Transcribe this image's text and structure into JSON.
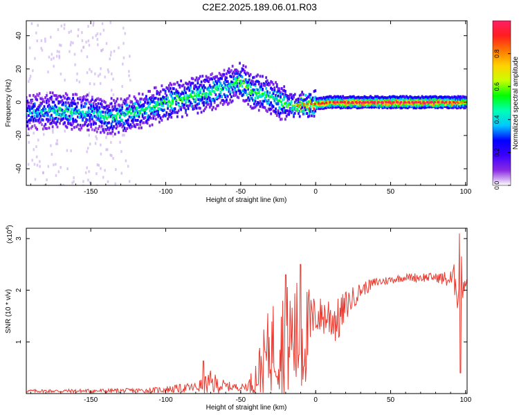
{
  "figure": {
    "title": "C2E2.2025.189.06.01.R03"
  },
  "chart_data": [
    {
      "type": "heatmap",
      "title": "C2E2.2025.189.06.01.R03",
      "xlabel": "Height of straight line (km)",
      "ylabel": "Frequency (Hz)",
      "xlim": [
        -193,
        101
      ],
      "ylim": [
        -50,
        49
      ],
      "xticks": [
        -150,
        -100,
        -50,
        0,
        50,
        100
      ],
      "yticks": [
        -40,
        -20,
        0,
        20,
        40
      ],
      "colorbar": {
        "label": "Normalized spectral amplitude",
        "range": [
          0,
          1
        ],
        "ticks": [
          0.0,
          0.2,
          0.4,
          0.6,
          0.8
        ],
        "colormap": [
          "#ffffff",
          "#8a2be2",
          "#3c00ff",
          "#0000ff",
          "#00c8ff",
          "#00ffb4",
          "#00ff00",
          "#c8ff00",
          "#ffd200",
          "#ff7800",
          "#ff1e1e",
          "#ff1e64"
        ]
      },
      "frequency_ridge": {
        "x": [
          -193,
          -180,
          -170,
          -160,
          -150,
          -140,
          -130,
          -120,
          -110,
          -100,
          -90,
          -80,
          -70,
          -60,
          -55,
          -50,
          -47,
          -45,
          -40,
          -35,
          -30,
          -25,
          -20,
          -15,
          -10,
          -5,
          0,
          10,
          20,
          40,
          60,
          80,
          90,
          100
        ],
        "frequency": [
          -7,
          -5,
          -5,
          -6,
          -6,
          -9,
          -8,
          -6,
          -3,
          0,
          2,
          4,
          6,
          9,
          11,
          13,
          11,
          8,
          6,
          5,
          3,
          1,
          -1,
          -2,
          -1,
          -1,
          -1,
          0,
          0,
          0,
          0,
          0,
          0,
          0
        ],
        "peak_amplitude": [
          0.35,
          0.4,
          0.45,
          0.45,
          0.4,
          0.45,
          0.45,
          0.45,
          0.45,
          0.5,
          0.5,
          0.5,
          0.45,
          0.45,
          0.45,
          0.5,
          0.55,
          0.5,
          0.5,
          0.5,
          0.45,
          0.45,
          0.5,
          0.55,
          0.75,
          0.8,
          0.85,
          0.9,
          0.92,
          0.95,
          0.95,
          0.95,
          0.9,
          0.7
        ]
      }
    },
    {
      "type": "line",
      "xlabel": "Height of straight line (km)",
      "ylabel": "SNR (10 * v/v)",
      "multiplier": "(x10",
      "multiplier_exp": "4",
      "multiplier_close": ")",
      "xlim": [
        -193,
        101
      ],
      "ylim": [
        0,
        3.2
      ],
      "xticks": [
        -150,
        -100,
        -50,
        0,
        50,
        100
      ],
      "yticks": [
        1,
        2,
        3
      ],
      "color": "#e8392e",
      "envelope": {
        "x": [
          -193,
          -150,
          -110,
          -100,
          -80,
          -70,
          -60,
          -50,
          -45,
          -40,
          -35,
          -30,
          -25,
          -20,
          -15,
          -10,
          -5,
          0,
          5,
          10,
          15,
          20,
          30,
          40,
          50,
          60,
          70,
          80,
          90,
          94,
          96,
          98,
          100,
          101
        ],
        "mean": [
          0.05,
          0.05,
          0.06,
          0.08,
          0.12,
          0.2,
          0.14,
          0.12,
          0.15,
          0.3,
          0.6,
          0.9,
          1.0,
          1.0,
          1.1,
          1.0,
          1.2,
          1.5,
          1.5,
          1.5,
          1.4,
          1.7,
          2.0,
          2.15,
          2.2,
          2.25,
          2.25,
          2.25,
          2.2,
          2.2,
          1.9,
          2.2,
          2.15,
          2.2
        ],
        "spread": [
          0.03,
          0.04,
          0.05,
          0.07,
          0.1,
          0.25,
          0.1,
          0.06,
          0.1,
          0.4,
          0.6,
          0.9,
          1.0,
          1.1,
          1.2,
          1.2,
          0.9,
          0.35,
          0.4,
          0.5,
          0.45,
          0.3,
          0.15,
          0.1,
          0.08,
          0.07,
          0.1,
          0.08,
          0.2,
          0.4,
          0.9,
          0.4,
          0.15,
          0.15
        ]
      },
      "peaks": [
        {
          "x": -75,
          "y": 0.63
        },
        {
          "x": -20,
          "y": 2.3
        },
        {
          "x": -10,
          "y": 2.5
        },
        {
          "x": 96,
          "y": 3.1
        },
        {
          "x": 96.5,
          "y": 0.4
        }
      ]
    }
  ]
}
